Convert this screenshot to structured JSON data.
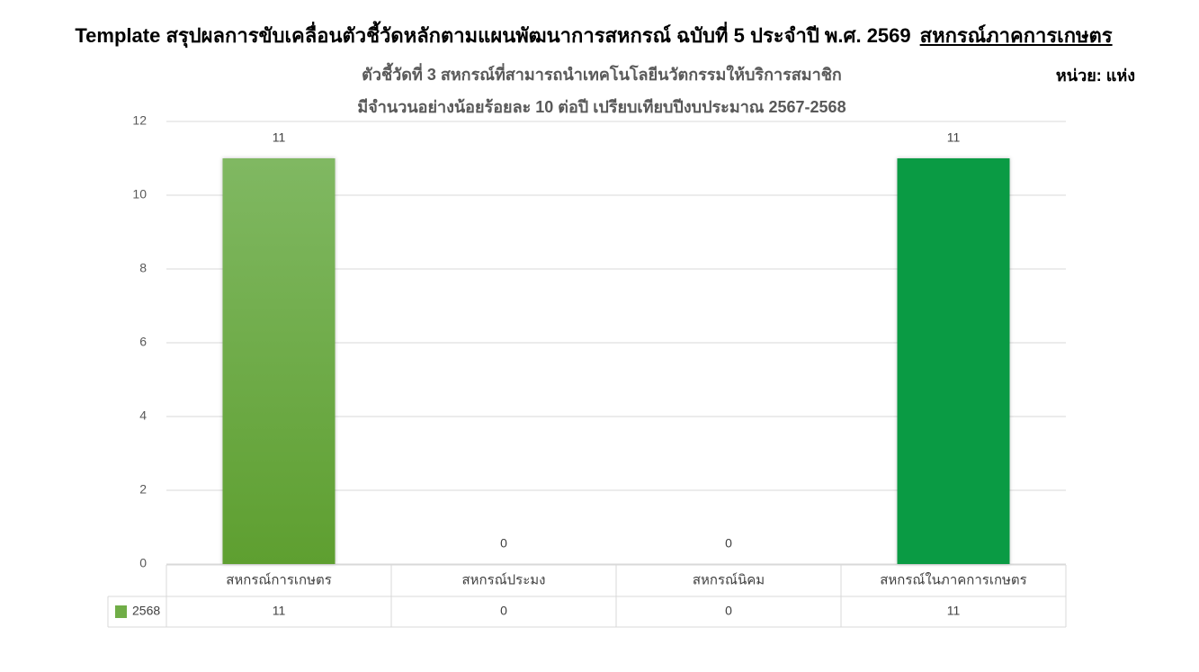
{
  "chart_data": {
    "type": "bar",
    "title": "Template สรุปผลการขับเคลื่อนตัวชี้วัดหลักตามแผนพัฒนาการสหกรณ์ ฉบับที่ 5 ประจำปี พ.ศ. 2569",
    "title_highlight": "สหกรณ์ภาคการเกษตร",
    "subtitle": [
      "ตัวชี้วัดที่ 3 สหกรณ์ที่สามารถนำเทคโนโลยีนวัตกรรมให้บริการสมาชิก",
      "มีจำนวนอย่างน้อยร้อยละ 10 ต่อปี เปรียบเทียบปีงบประมาณ 2567-2568"
    ],
    "unit_label": "หน่วย: แห่ง",
    "categories": [
      "สหกรณ์การเกษตร",
      "สหกรณ์ประมง",
      "สหกรณ์นิคม",
      "สหกรณ์ในภาคการเกษตร"
    ],
    "series": [
      {
        "name": "2568",
        "color": "#70ad47",
        "colors": [
          "#70ad47",
          "#70ad47",
          "#70ad47",
          "#0a9b44"
        ],
        "values": [
          11,
          0,
          0,
          11
        ]
      }
    ],
    "ylim": [
      0,
      12
    ],
    "yticks": [
      0,
      2,
      4,
      6,
      8,
      10,
      12
    ],
    "grid": true,
    "data_table": true
  }
}
